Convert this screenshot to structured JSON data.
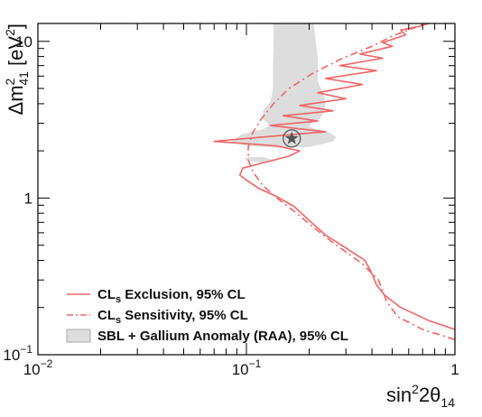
{
  "chart_data": {
    "type": "line",
    "xscale": "log",
    "yscale": "log",
    "xlim": [
      0.01,
      1
    ],
    "ylim": [
      0.1,
      13
    ],
    "x_ticks": [
      {
        "value": 0.01,
        "base": "10",
        "exp": "−2"
      },
      {
        "value": 0.1,
        "base": "10",
        "exp": "−1"
      },
      {
        "value": 1,
        "base": "1",
        "exp": ""
      }
    ],
    "y_ticks": [
      {
        "value": 0.1,
        "base": "10",
        "exp": "−1"
      },
      {
        "value": 1,
        "base": "1",
        "exp": ""
      },
      {
        "value": 10,
        "base": "10",
        "exp": ""
      }
    ],
    "xlabel": {
      "pre": "sin",
      "sup": "2",
      "mid": "2θ",
      "sub": "14"
    },
    "ylabel": {
      "pre": "Δm",
      "sup": "2",
      "sub": "41",
      "post": " [eV",
      "sup2": "2",
      "end": "]"
    },
    "colors": {
      "exclusion": "#ee6666",
      "sensitivity": "#ee6666",
      "region_fill": "#dddddd",
      "region_edge": "#aaaaaa",
      "best_fit": "#555555"
    },
    "best_fit": {
      "x": 0.165,
      "y": 2.4,
      "icon": "star-in-circle"
    },
    "legend": {
      "placement": "bottom-left",
      "entries": [
        {
          "key": "exclusion",
          "pre": "CL",
          "sub": "s",
          "post": " Exclusion, 95% CL",
          "style": "solid"
        },
        {
          "key": "sensitivity",
          "pre": "CL",
          "sub": "s",
          "post": " Sensitivity, 95% CL",
          "style": "dashdot"
        },
        {
          "key": "region",
          "pre": "SBL + Gallium Anomaly (RAA), 95% CL",
          "sub": "",
          "post": "",
          "style": "fill"
        }
      ]
    },
    "series": [
      {
        "key": "exclusion",
        "style": "solid",
        "points": [
          [
            1.0,
            0.145
          ],
          [
            0.75,
            0.165
          ],
          [
            0.55,
            0.2
          ],
          [
            0.46,
            0.24
          ],
          [
            0.42,
            0.28
          ],
          [
            0.4,
            0.33
          ],
          [
            0.37,
            0.4
          ],
          [
            0.3,
            0.48
          ],
          [
            0.24,
            0.58
          ],
          [
            0.2,
            0.72
          ],
          [
            0.17,
            0.88
          ],
          [
            0.14,
            1.02
          ],
          [
            0.115,
            1.15
          ],
          [
            0.1,
            1.3
          ],
          [
            0.093,
            1.4
          ],
          [
            0.096,
            1.55
          ],
          [
            0.125,
            1.7
          ],
          [
            0.16,
            1.85
          ],
          [
            0.18,
            2.0
          ],
          [
            0.14,
            2.15
          ],
          [
            0.07,
            2.3
          ],
          [
            0.12,
            2.45
          ],
          [
            0.24,
            2.65
          ],
          [
            0.13,
            2.9
          ],
          [
            0.22,
            3.1
          ],
          [
            0.15,
            3.35
          ],
          [
            0.26,
            3.6
          ],
          [
            0.18,
            3.9
          ],
          [
            0.3,
            4.3
          ],
          [
            0.22,
            4.7
          ],
          [
            0.36,
            5.3
          ],
          [
            0.24,
            5.8
          ],
          [
            0.42,
            6.5
          ],
          [
            0.28,
            7.0
          ],
          [
            0.45,
            7.8
          ],
          [
            0.35,
            8.3
          ],
          [
            0.5,
            9.3
          ],
          [
            0.45,
            9.8
          ],
          [
            0.58,
            11.0
          ],
          [
            0.55,
            11.8
          ],
          [
            0.68,
            12.5
          ],
          [
            0.75,
            13.0
          ]
        ]
      },
      {
        "key": "sensitivity",
        "style": "dashdot",
        "points": [
          [
            1.0,
            0.125
          ],
          [
            0.7,
            0.145
          ],
          [
            0.53,
            0.175
          ],
          [
            0.47,
            0.22
          ],
          [
            0.43,
            0.3
          ],
          [
            0.36,
            0.38
          ],
          [
            0.27,
            0.5
          ],
          [
            0.21,
            0.65
          ],
          [
            0.17,
            0.82
          ],
          [
            0.14,
            1.0
          ],
          [
            0.12,
            1.2
          ],
          [
            0.108,
            1.45
          ],
          [
            0.102,
            1.75
          ],
          [
            0.102,
            2.1
          ],
          [
            0.107,
            2.6
          ],
          [
            0.118,
            3.2
          ],
          [
            0.135,
            4.0
          ],
          [
            0.16,
            5.0
          ],
          [
            0.21,
            6.3
          ],
          [
            0.29,
            7.8
          ],
          [
            0.4,
            9.3
          ],
          [
            0.5,
            10.8
          ],
          [
            0.62,
            12.0
          ],
          [
            0.72,
            13.0
          ]
        ]
      }
    ],
    "region": {
      "key": "region",
      "polygons": [
        [
          [
            0.135,
            13.0
          ],
          [
            0.21,
            13.0
          ],
          [
            0.215,
            10.0
          ],
          [
            0.22,
            8.0
          ],
          [
            0.22,
            5.5
          ],
          [
            0.235,
            4.6
          ],
          [
            0.24,
            4.0
          ],
          [
            0.235,
            3.5
          ],
          [
            0.225,
            3.2
          ],
          [
            0.205,
            3.0
          ],
          [
            0.2,
            2.85
          ],
          [
            0.215,
            2.75
          ],
          [
            0.25,
            2.62
          ],
          [
            0.27,
            2.45
          ],
          [
            0.26,
            2.3
          ],
          [
            0.23,
            2.2
          ],
          [
            0.2,
            2.12
          ],
          [
            0.14,
            2.1
          ],
          [
            0.1,
            2.15
          ],
          [
            0.085,
            2.3
          ],
          [
            0.095,
            2.55
          ],
          [
            0.12,
            2.75
          ],
          [
            0.13,
            2.9
          ],
          [
            0.12,
            3.2
          ],
          [
            0.12,
            3.6
          ],
          [
            0.13,
            4.1
          ],
          [
            0.134,
            5.0
          ],
          [
            0.134,
            7.0
          ],
          [
            0.135,
            10.0
          ]
        ],
        [
          [
            0.098,
            1.75
          ],
          [
            0.12,
            1.67
          ],
          [
            0.14,
            1.72
          ],
          [
            0.12,
            1.83
          ],
          [
            0.1,
            1.82
          ]
        ]
      ]
    }
  }
}
